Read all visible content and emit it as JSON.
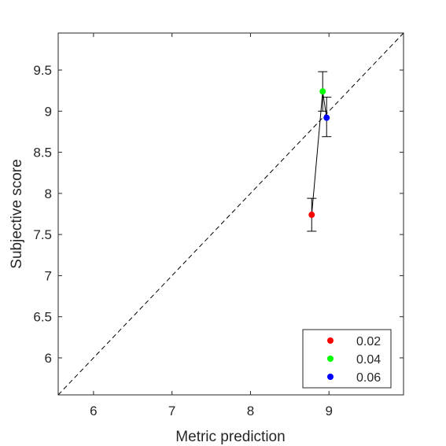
{
  "chart_data": {
    "type": "scatter",
    "title": "",
    "xlabel": "Metric prediction",
    "ylabel": "Subjective score",
    "xlim": [
      5.55,
      9.95
    ],
    "ylim": [
      5.55,
      9.95
    ],
    "xticks": [
      "6",
      "7",
      "8",
      "9"
    ],
    "yticks": [
      "6",
      "6.5",
      "7",
      "7.5",
      "8",
      "8.5",
      "9",
      "9.5"
    ],
    "reference_line": {
      "style": "dashed",
      "from": [
        5.55,
        5.55
      ],
      "to": [
        9.95,
        9.95
      ]
    },
    "connecting_line": true,
    "grid": false,
    "legend_position": "bottom-right",
    "series": [
      {
        "name": "0.02",
        "color": "#ff0000",
        "x": 8.78,
        "y": 7.74,
        "y_err_low": 7.54,
        "y_err_high": 7.94
      },
      {
        "name": "0.04",
        "color": "#00ff00",
        "x": 8.92,
        "y": 9.24,
        "y_err_low": 9.0,
        "y_err_high": 9.48
      },
      {
        "name": "0.06",
        "color": "#0000ff",
        "x": 8.97,
        "y": 8.92,
        "y_err_low": 8.69,
        "y_err_high": 9.17
      }
    ]
  }
}
